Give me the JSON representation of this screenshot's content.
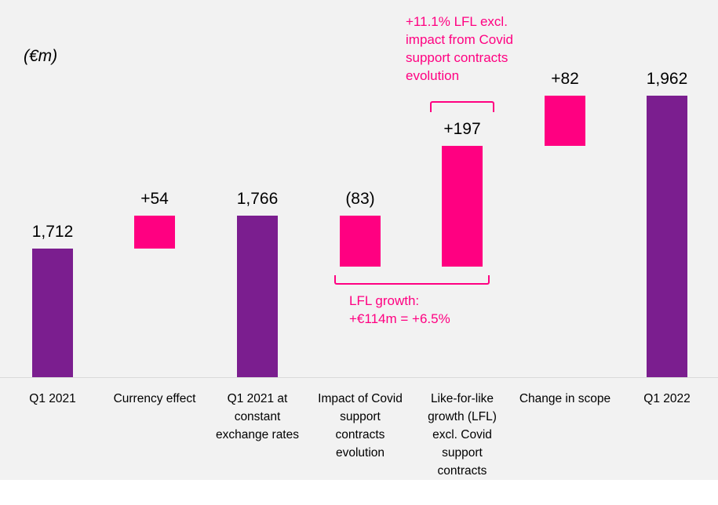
{
  "chart_data": {
    "type": "waterfall",
    "unit_label": "(€m)",
    "ylim": [
      1502,
      2000
    ],
    "categories": [
      [
        "Q1 2021"
      ],
      [
        "Currency effect"
      ],
      [
        "Q1 2021 at",
        "constant",
        "exchange rates"
      ],
      [
        "Impact of Covid",
        "support",
        "contracts",
        "evolution"
      ],
      [
        "Like-for-like",
        "growth (LFL)",
        "excl. Covid",
        "support",
        "contracts"
      ],
      [
        "Change in scope"
      ],
      [
        "Q1 2022"
      ]
    ],
    "bars": [
      {
        "kind": "total",
        "start": 0,
        "end": 1712,
        "label": "1,712"
      },
      {
        "kind": "delta",
        "start": 1712,
        "end": 1766,
        "label": "+54"
      },
      {
        "kind": "total",
        "start": 0,
        "end": 1766,
        "label": "1,766"
      },
      {
        "kind": "delta",
        "start": 1766,
        "end": 1683,
        "label": "(83)"
      },
      {
        "kind": "delta",
        "start": 1683,
        "end": 1880,
        "label": "+197"
      },
      {
        "kind": "delta",
        "start": 1880,
        "end": 1962,
        "label": "+82"
      },
      {
        "kind": "total",
        "start": 0,
        "end": 1962,
        "label": "1,962"
      }
    ],
    "annotations": {
      "lfl_growth": [
        "LFL growth:",
        "+€114m = +6.5%"
      ],
      "lfl_excl": [
        "+11.1% LFL excl.",
        "impact from Covid",
        "support contracts",
        "evolution"
      ]
    },
    "colors": {
      "total": "#7b1e8f",
      "delta": "#ff0081",
      "annotation": "#ff0081"
    }
  }
}
